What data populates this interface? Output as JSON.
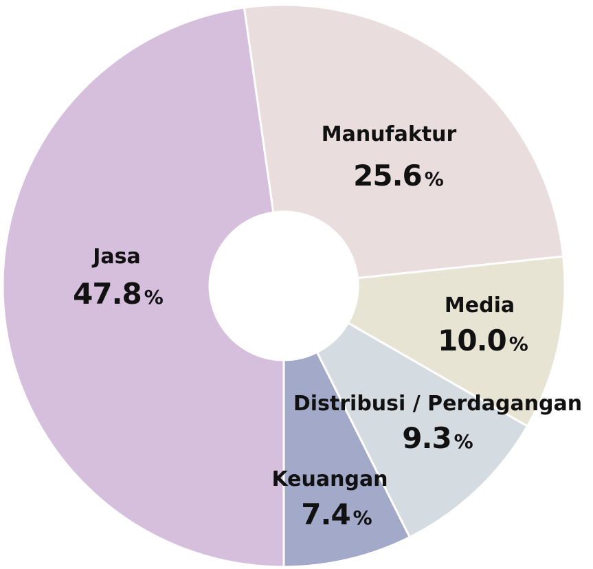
{
  "chart_data": {
    "type": "donut",
    "categories": [
      "Jasa",
      "Manufaktur",
      "Media",
      "Distribusi / Perdagangan",
      "Keuangan"
    ],
    "values": [
      47.8,
      25.6,
      10.0,
      9.3,
      7.4
    ],
    "value_labels": [
      "47.8",
      "25.6",
      "10.0",
      "9.3",
      "7.4"
    ],
    "unit": "%",
    "colors": [
      "#d5bfdc",
      "#eaddde",
      "#e8e4d4",
      "#d4dce2",
      "#a3a9c9"
    ]
  }
}
